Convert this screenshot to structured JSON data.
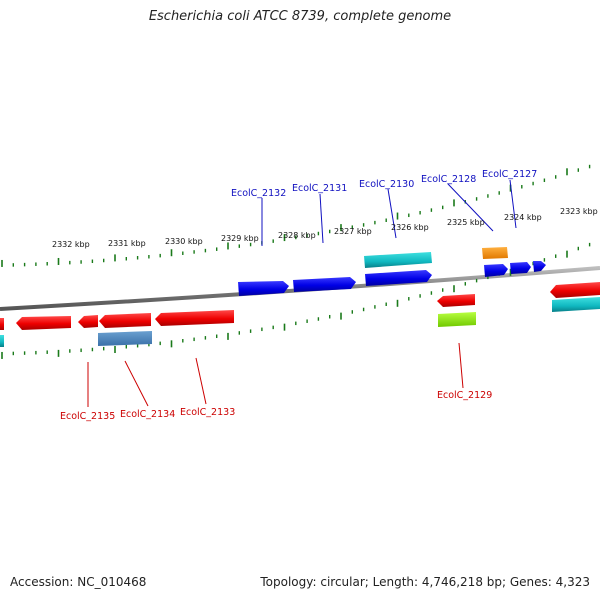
{
  "title": "Escherichia coli ATCC 8739, complete genome",
  "footer": {
    "accession": "Accession: NC_010468",
    "summary": "Topology: circular; Length: 4,746,218 bp; Genes: 4,323"
  },
  "scale_labels": [
    "2332 kbp",
    "2331 kbp",
    "2330 kbp",
    "2329 kbp",
    "2328 kbp",
    "2327 kbp",
    "2326 kbp",
    "2325 kbp",
    "2324 kbp",
    "2323 kbp"
  ],
  "gene_labels_top": [
    "EcolC_2132",
    "EcolC_2131",
    "EcolC_2130",
    "EcolC_2128",
    "EcolC_2127"
  ],
  "gene_labels_bottom": [
    "EcolC_2135",
    "EcolC_2134",
    "EcolC_2133",
    "EcolC_2129"
  ],
  "colors": {
    "forward_label": "#1010c0",
    "reverse_label": "#cc0000",
    "tick": "#1a7a1a",
    "backbone": "#777777"
  }
}
